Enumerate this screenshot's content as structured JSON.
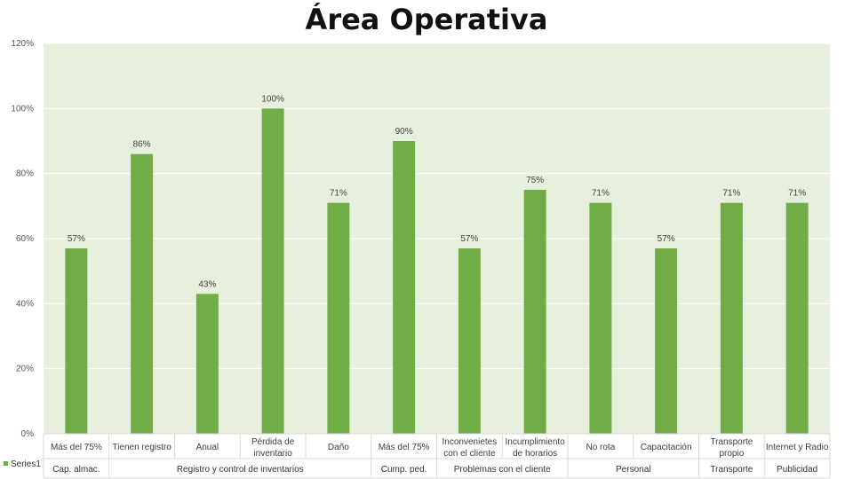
{
  "chart_data": {
    "type": "bar",
    "title": "Área Operativa",
    "xlabel": "",
    "ylabel": "",
    "ylim": [
      0,
      1.2
    ],
    "yticks": [
      "0%",
      "20%",
      "40%",
      "60%",
      "80%",
      "100%",
      "120%"
    ],
    "yaxis_format": "percent",
    "grid": true,
    "legend_position": "bottom-left",
    "colors": {
      "bar": "#70ad47",
      "plot_bg": "#e7f0dc",
      "grid": "#ffffff"
    },
    "categories": [
      "Más del 75%",
      "Tienen registro",
      "Anual",
      "Pérdida de inventario",
      "Daño",
      "Más del 75%",
      "Inconvenietes con el cliente",
      "Incumplimiento de horarios",
      "No rota",
      "Capacitación",
      "Transporte propio",
      "Internet y Radio"
    ],
    "category_lines": [
      [
        "Más del 75%"
      ],
      [
        "Tienen registro"
      ],
      [
        "Anual"
      ],
      [
        "Pérdida de",
        "inventario"
      ],
      [
        "Daño"
      ],
      [
        "Más del 75%"
      ],
      [
        "Inconvenietes",
        "con el cliente"
      ],
      [
        "Incumplimiento",
        "de horarios"
      ],
      [
        "No rota"
      ],
      [
        "Capacitación"
      ],
      [
        "Transporte",
        "propio"
      ],
      [
        "Internet y Radio"
      ]
    ],
    "groups": [
      {
        "label": "Cap. almac.",
        "count": 1
      },
      {
        "label": "Registro y control de inventarios",
        "count": 4
      },
      {
        "label": "Cump. ped.",
        "count": 1
      },
      {
        "label": "Problemas con el cliente",
        "count": 2
      },
      {
        "label": "Personal",
        "count": 2
      },
      {
        "label": "Transporte",
        "count": 1
      },
      {
        "label": "Publicidad",
        "count": 1
      }
    ],
    "series": [
      {
        "name": "Series1",
        "values": [
          0.57,
          0.86,
          0.43,
          1.0,
          0.71,
          0.9,
          0.57,
          0.75,
          0.71,
          0.57,
          0.71,
          0.71
        ],
        "labels": [
          "57%",
          "86%",
          "43%",
          "100%",
          "71%",
          "90%",
          "57%",
          "75%",
          "71%",
          "57%",
          "71%",
          "71%"
        ]
      }
    ]
  }
}
